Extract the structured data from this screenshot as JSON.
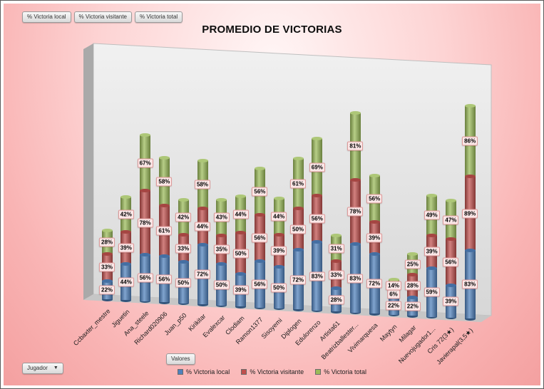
{
  "title": "PROMEDIO DE VICTORIAS",
  "filter_buttons": [
    "% Victoria local",
    "% Victoria visitante",
    "% Victoria total"
  ],
  "axis_field_button": "Jugador",
  "values_field_button": "Valores",
  "colors": {
    "local": "#4f81bd",
    "visitante": "#c0504d",
    "total": "#9bbb59",
    "label_bg": "#fbe7e7",
    "label_border": "#dd9999"
  },
  "chart_data": {
    "type": "bar",
    "subtype": "3d-stacked-cylinder",
    "title": "PROMEDIO DE VICTORIAS",
    "value_suffix": "%",
    "legend_position": "bottom",
    "categories": [
      "Ccbaxter_mestre",
      "Jiguetin",
      "Ana_steele",
      "Richard020906",
      "Juan_p50",
      "Kirikitar",
      "Evalexcar",
      "Clodiam",
      "Ramon1377",
      "Sisoyemi",
      "Diplogen",
      "Edulorenzo",
      "Artista61",
      "Beatrizballester...",
      "Vivimarquesa",
      "Maytyn",
      "Milagar",
      "Nuevojugador1...",
      "Cris 72(3★)",
      "Javierapal(3,5★)"
    ],
    "series": [
      {
        "name": "% Victoria local",
        "color": "#4f81bd",
        "values": [
          22,
          44,
          56,
          56,
          50,
          72,
          50,
          39,
          56,
          50,
          72,
          83,
          28,
          83,
          72,
          22,
          22,
          59,
          39,
          83
        ]
      },
      {
        "name": "% Victoria visitante",
        "color": "#c0504d",
        "values": [
          33,
          39,
          78,
          61,
          33,
          44,
          35,
          50,
          56,
          39,
          50,
          56,
          33,
          78,
          39,
          6,
          28,
          39,
          56,
          89
        ]
      },
      {
        "name": "% Victoria total",
        "color": "#9bbb59",
        "values": [
          28,
          42,
          67,
          58,
          42,
          58,
          43,
          44,
          56,
          44,
          61,
          69,
          31,
          81,
          56,
          14,
          25,
          49,
          47,
          86
        ]
      }
    ]
  }
}
